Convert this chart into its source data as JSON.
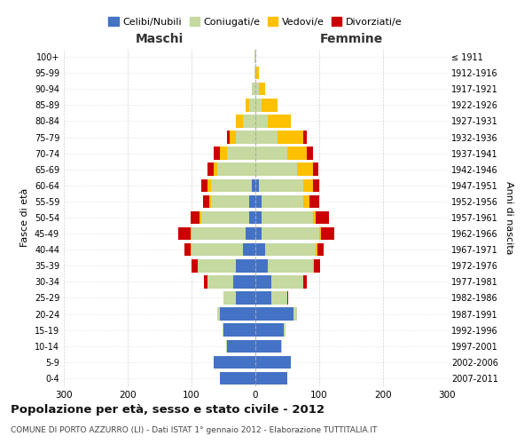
{
  "age_groups": [
    "0-4",
    "5-9",
    "10-14",
    "15-19",
    "20-24",
    "25-29",
    "30-34",
    "35-39",
    "40-44",
    "45-49",
    "50-54",
    "55-59",
    "60-64",
    "65-69",
    "70-74",
    "75-79",
    "80-84",
    "85-89",
    "90-94",
    "95-99",
    "100+"
  ],
  "birth_years": [
    "2007-2011",
    "2002-2006",
    "1997-2001",
    "1992-1996",
    "1987-1991",
    "1982-1986",
    "1977-1981",
    "1972-1976",
    "1967-1971",
    "1962-1966",
    "1957-1961",
    "1952-1956",
    "1947-1951",
    "1942-1946",
    "1937-1941",
    "1932-1936",
    "1927-1931",
    "1922-1926",
    "1917-1921",
    "1912-1916",
    "≤ 1911"
  ],
  "maschi": {
    "celibi": [
      55,
      65,
      45,
      50,
      55,
      30,
      35,
      30,
      20,
      15,
      10,
      10,
      5,
      0,
      0,
      0,
      0,
      0,
      0,
      0,
      0
    ],
    "coniugati": [
      0,
      0,
      1,
      2,
      5,
      20,
      40,
      60,
      80,
      85,
      75,
      60,
      65,
      60,
      45,
      30,
      20,
      10,
      5,
      2,
      1
    ],
    "vedovi": [
      0,
      0,
      0,
      0,
      0,
      0,
      0,
      0,
      1,
      1,
      2,
      2,
      5,
      5,
      10,
      10,
      10,
      5,
      0,
      0,
      0
    ],
    "divorziati": [
      0,
      0,
      0,
      0,
      0,
      0,
      5,
      10,
      10,
      20,
      15,
      10,
      10,
      10,
      10,
      5,
      0,
      0,
      0,
      0,
      0
    ]
  },
  "femmine": {
    "nubili": [
      50,
      55,
      40,
      45,
      60,
      25,
      25,
      20,
      15,
      10,
      10,
      10,
      5,
      0,
      0,
      0,
      0,
      0,
      0,
      0,
      0
    ],
    "coniugate": [
      0,
      0,
      1,
      2,
      5,
      25,
      50,
      70,
      80,
      90,
      80,
      65,
      70,
      65,
      50,
      35,
      20,
      10,
      5,
      2,
      1
    ],
    "vedove": [
      0,
      0,
      0,
      0,
      0,
      0,
      0,
      1,
      2,
      3,
      5,
      10,
      15,
      25,
      30,
      40,
      35,
      25,
      10,
      3,
      1
    ],
    "divorziate": [
      0,
      0,
      0,
      0,
      0,
      2,
      5,
      10,
      10,
      20,
      20,
      15,
      10,
      8,
      10,
      5,
      0,
      0,
      0,
      0,
      0
    ]
  },
  "colors": {
    "celibi": "#4472c4",
    "coniugati": "#c5d9a0",
    "vedovi": "#ffc000",
    "divorziati": "#cc0000"
  },
  "title": "Popolazione per età, sesso e stato civile - 2012",
  "subtitle": "COMUNE DI PORTO AZZURRO (LI) - Dati ISTAT 1° gennaio 2012 - Elaborazione TUTTITALIA.IT",
  "xlabel_left": "Maschi",
  "xlabel_right": "Femmine",
  "ylabel_left": "Fasce di età",
  "ylabel_right": "Anni di nascita",
  "xlim": 300,
  "background_color": "#ffffff",
  "grid_color": "#cccccc"
}
